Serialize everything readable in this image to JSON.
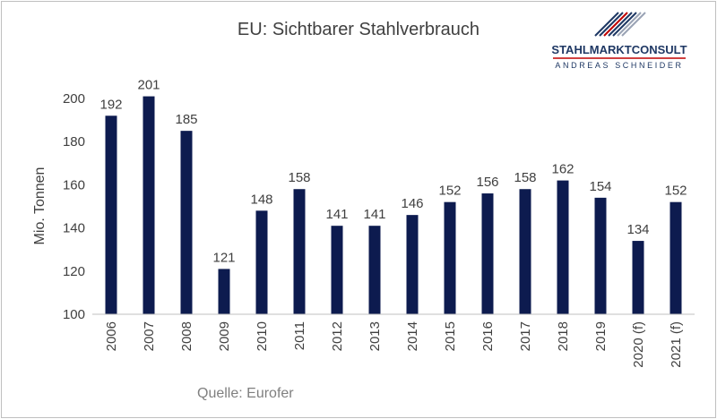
{
  "logo": {
    "name_part1": "STAHLMARKT",
    "name_part2": "CONSULT",
    "subtitle": "ANDREAS SCHNEIDER",
    "accent_color": "#c00000",
    "brand_color": "#1f3864"
  },
  "chart_data": {
    "type": "bar",
    "title": "EU: Sichtbarer Stahlverbrauch",
    "ylabel": "Mio. Tonnen",
    "xlabel": "",
    "source": "Quelle: Eurofer",
    "categories": [
      "2006",
      "2007",
      "2008",
      "2009",
      "2010",
      "2011",
      "2012",
      "2013",
      "2014",
      "2015",
      "2016",
      "2017",
      "2018",
      "2019",
      "2020 (f)",
      "2021 (f)"
    ],
    "values": [
      192,
      201,
      185,
      121,
      148,
      158,
      141,
      141,
      146,
      152,
      156,
      158,
      162,
      154,
      134,
      152
    ],
    "ylim": [
      100,
      200
    ],
    "yticks": [
      100,
      120,
      140,
      160,
      180,
      200
    ],
    "bar_color": "#0d1b4f",
    "grid": false,
    "legend": "none"
  }
}
